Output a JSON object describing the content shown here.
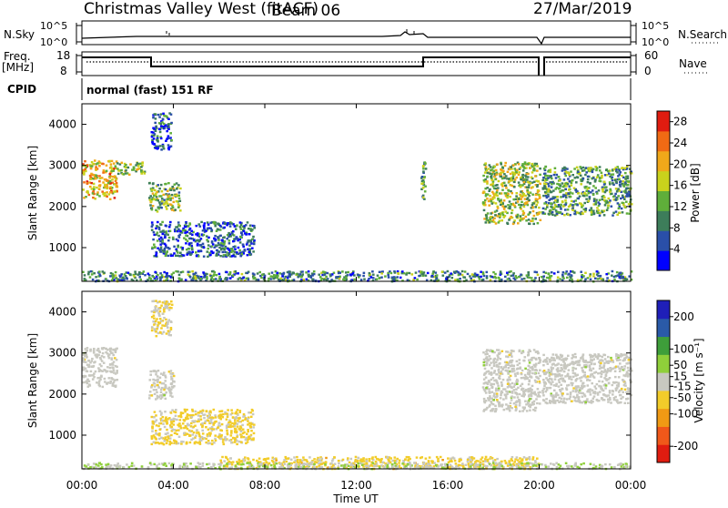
{
  "header": {
    "station": "Christmas Valley West (fitACF)",
    "beam": "Beam 06",
    "date": "27/Mar/2019"
  },
  "noise_panel": {
    "left_label": "N.Sky",
    "right_label": "N.Search",
    "left_ticks": [
      "10^5",
      "10^0"
    ],
    "right_ticks": [
      "10^5",
      "10^0"
    ]
  },
  "freq_panel": {
    "left_label": "Freq.",
    "left_unit": "[MHz]",
    "right_label": "Nave",
    "left_ticks": [
      "18",
      "8"
    ],
    "right_ticks": [
      "60",
      "0"
    ]
  },
  "cpid": {
    "label": "CPID",
    "value": "normal (fast) 151 RF"
  },
  "colors": {
    "power_scale": [
      "#0000ff",
      "#2a4fa8",
      "#3d7d5a",
      "#5fae3a",
      "#c9d21c",
      "#f0a81a",
      "#f06a14",
      "#e01c10"
    ],
    "velocity_scale": [
      "#e01c10",
      "#f0581a",
      "#f09a14",
      "#f2cc2a",
      "#c8c8c0",
      "#8fcf3a",
      "#3e9e3a",
      "#2a5aa8",
      "#1f1fb8"
    ]
  },
  "chart_data": [
    {
      "type": "heatmap",
      "panel": "power",
      "ylabel": "Slant Range [km]",
      "xlabel": "Time UT",
      "x_ticks": [
        "00:00",
        "04:00",
        "08:00",
        "12:00",
        "16:00",
        "20:00",
        "00:00"
      ],
      "y_ticks": [
        1000,
        2000,
        3000,
        4000
      ],
      "ylim": [
        180,
        4500
      ],
      "xlim_hours": [
        0,
        24
      ],
      "colorbar": {
        "label": "Power [dB]",
        "ticks": [
          4,
          8,
          12,
          16,
          20,
          24,
          28
        ],
        "range": [
          0,
          30
        ]
      },
      "regions": [
        {
          "t": [
            0.0,
            1.5
          ],
          "r": [
            2200,
            3150
          ],
          "level": 20
        },
        {
          "t": [
            1.4,
            2.7
          ],
          "r": [
            2800,
            3100
          ],
          "level": 13
        },
        {
          "t": [
            2.9,
            4.3
          ],
          "r": [
            1900,
            2600
          ],
          "level": 14
        },
        {
          "t": [
            3.0,
            3.9
          ],
          "r": [
            3400,
            4300
          ],
          "level": 6
        },
        {
          "t": [
            3.0,
            7.5
          ],
          "r": [
            800,
            1650
          ],
          "level": 7
        },
        {
          "t": [
            14.8,
            15.0
          ],
          "r": [
            2200,
            3100
          ],
          "level": 12
        },
        {
          "t": [
            17.5,
            20.0
          ],
          "r": [
            1600,
            3100
          ],
          "level": 15
        },
        {
          "t": [
            20.1,
            24.0
          ],
          "r": [
            1800,
            3000
          ],
          "level": 11
        },
        {
          "t": [
            0.0,
            24.0
          ],
          "r": [
            200,
            450
          ],
          "level": 9
        }
      ]
    },
    {
      "type": "heatmap",
      "panel": "velocity",
      "ylabel": "Slant Range [km]",
      "xlabel": "Time UT",
      "x_ticks": [
        "00:00",
        "04:00",
        "08:00",
        "12:00",
        "16:00",
        "20:00",
        "00:00"
      ],
      "y_ticks": [
        1000,
        2000,
        3000,
        4000
      ],
      "ylim": [
        180,
        4500
      ],
      "xlim_hours": [
        0,
        24
      ],
      "colorbar": {
        "label": "Velocity [m s⁻¹]",
        "ticks": [
          -200,
          -100,
          -50,
          -15,
          15,
          50,
          100,
          200
        ],
        "range": [
          -250,
          250
        ]
      },
      "regions": [
        {
          "t": [
            0.0,
            1.5
          ],
          "r": [
            2200,
            3150
          ],
          "level": 0
        },
        {
          "t": [
            2.9,
            4.0
          ],
          "r": [
            1900,
            2600
          ],
          "level": 0
        },
        {
          "t": [
            3.0,
            7.5
          ],
          "r": [
            800,
            1650
          ],
          "level": -40
        },
        {
          "t": [
            3.0,
            3.9
          ],
          "r": [
            3400,
            4300
          ],
          "level": -30
        },
        {
          "t": [
            17.5,
            20.0
          ],
          "r": [
            1600,
            3100
          ],
          "level": 0
        },
        {
          "t": [
            20.1,
            24.0
          ],
          "r": [
            1800,
            3000
          ],
          "level": 0
        },
        {
          "t": [
            6.0,
            20.0
          ],
          "r": [
            200,
            500
          ],
          "level": -45
        },
        {
          "t": [
            0.0,
            24.0
          ],
          "r": [
            200,
            350
          ],
          "level": 20
        }
      ]
    }
  ]
}
